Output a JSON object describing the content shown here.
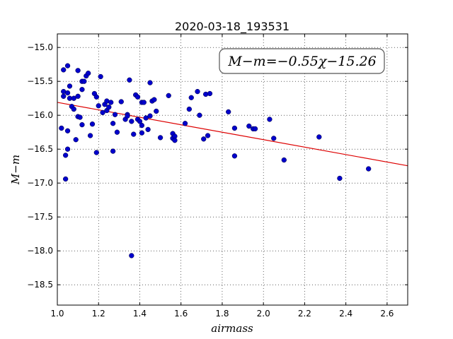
{
  "chart_data": {
    "type": "scatter",
    "title": "2020-03-18_193531",
    "xlabel": "airmass",
    "ylabel": "M−m",
    "xlim": [
      1.0,
      2.7
    ],
    "ylim": [
      -18.8,
      -14.8
    ],
    "y_inverted": true,
    "grid": true,
    "x_ticks": [
      1.0,
      1.2,
      1.4,
      1.6,
      1.8,
      2.0,
      2.2,
      2.4,
      2.6
    ],
    "x_tick_labels": [
      "1.0",
      "1.2",
      "1.4",
      "1.6",
      "1.8",
      "2.0",
      "2.2",
      "2.4",
      "2.6"
    ],
    "y_ticks": [
      -15.0,
      -15.5,
      -16.0,
      -16.5,
      -17.0,
      -17.5,
      -18.0,
      -18.5
    ],
    "y_tick_labels": [
      "−15.0",
      "−15.5",
      "−16.0",
      "−16.5",
      "−17.0",
      "−17.5",
      "−18.0",
      "−18.5"
    ],
    "annotation": "M−m=−0.55χ−15.26",
    "fit_line": {
      "slope": -0.55,
      "intercept": -15.26,
      "color": "#dd0000"
    },
    "marker_color": "#0000cc",
    "points": [
      [
        1.02,
        -16.19
      ],
      [
        1.03,
        -15.72
      ],
      [
        1.03,
        -15.65
      ],
      [
        1.03,
        -15.33
      ],
      [
        1.04,
        -16.94
      ],
      [
        1.04,
        -16.59
      ],
      [
        1.05,
        -15.27
      ],
      [
        1.05,
        -15.67
      ],
      [
        1.05,
        -16.5
      ],
      [
        1.05,
        -16.23
      ],
      [
        1.06,
        -15.57
      ],
      [
        1.06,
        -15.75
      ],
      [
        1.07,
        -15.87
      ],
      [
        1.08,
        -15.91
      ],
      [
        1.08,
        -15.75
      ],
      [
        1.09,
        -16.36
      ],
      [
        1.1,
        -15.34
      ],
      [
        1.1,
        -15.72
      ],
      [
        1.1,
        -16.02
      ],
      [
        1.11,
        -16.03
      ],
      [
        1.12,
        -15.5
      ],
      [
        1.12,
        -15.62
      ],
      [
        1.12,
        -16.14
      ],
      [
        1.13,
        -15.5
      ],
      [
        1.14,
        -15.42
      ],
      [
        1.15,
        -15.38
      ],
      [
        1.16,
        -16.3
      ],
      [
        1.17,
        -16.13
      ],
      [
        1.18,
        -15.68
      ],
      [
        1.19,
        -15.73
      ],
      [
        1.19,
        -16.55
      ],
      [
        1.2,
        -15.86
      ],
      [
        1.21,
        -15.43
      ],
      [
        1.22,
        -15.96
      ],
      [
        1.23,
        -15.84
      ],
      [
        1.24,
        -15.79
      ],
      [
        1.24,
        -15.93
      ],
      [
        1.25,
        -15.88
      ],
      [
        1.26,
        -15.81
      ],
      [
        1.27,
        -16.12
      ],
      [
        1.27,
        -16.53
      ],
      [
        1.28,
        -15.99
      ],
      [
        1.29,
        -16.25
      ],
      [
        1.31,
        -15.8
      ],
      [
        1.33,
        -16.06
      ],
      [
        1.34,
        -15.99
      ],
      [
        1.34,
        -16.01
      ],
      [
        1.35,
        -15.48
      ],
      [
        1.36,
        -16.09
      ],
      [
        1.36,
        -18.07
      ],
      [
        1.37,
        -16.28
      ],
      [
        1.38,
        -15.7
      ],
      [
        1.39,
        -15.73
      ],
      [
        1.39,
        -16.06
      ],
      [
        1.4,
        -16.09
      ],
      [
        1.41,
        -15.81
      ],
      [
        1.41,
        -16.15
      ],
      [
        1.41,
        -16.26
      ],
      [
        1.42,
        -15.81
      ],
      [
        1.43,
        -16.04
      ],
      [
        1.44,
        -16.21
      ],
      [
        1.45,
        -16.01
      ],
      [
        1.45,
        -15.52
      ],
      [
        1.46,
        -15.79
      ],
      [
        1.47,
        -15.77
      ],
      [
        1.48,
        -15.94
      ],
      [
        1.5,
        -16.33
      ],
      [
        1.54,
        -15.71
      ],
      [
        1.56,
        -16.27
      ],
      [
        1.56,
        -16.34
      ],
      [
        1.57,
        -16.31
      ],
      [
        1.57,
        -16.37
      ],
      [
        1.62,
        -16.12
      ],
      [
        1.64,
        -15.91
      ],
      [
        1.65,
        -15.74
      ],
      [
        1.68,
        -15.65
      ],
      [
        1.69,
        -16.0
      ],
      [
        1.71,
        -16.35
      ],
      [
        1.72,
        -15.69
      ],
      [
        1.73,
        -16.3
      ],
      [
        1.74,
        -15.68
      ],
      [
        1.83,
        -15.95
      ],
      [
        1.86,
        -16.19
      ],
      [
        1.86,
        -16.6
      ],
      [
        1.93,
        -16.16
      ],
      [
        1.95,
        -16.2
      ],
      [
        1.96,
        -16.2
      ],
      [
        2.03,
        -16.06
      ],
      [
        2.05,
        -16.34
      ],
      [
        2.1,
        -16.66
      ],
      [
        2.27,
        -16.32
      ],
      [
        2.37,
        -16.93
      ],
      [
        2.51,
        -16.79
      ]
    ]
  }
}
